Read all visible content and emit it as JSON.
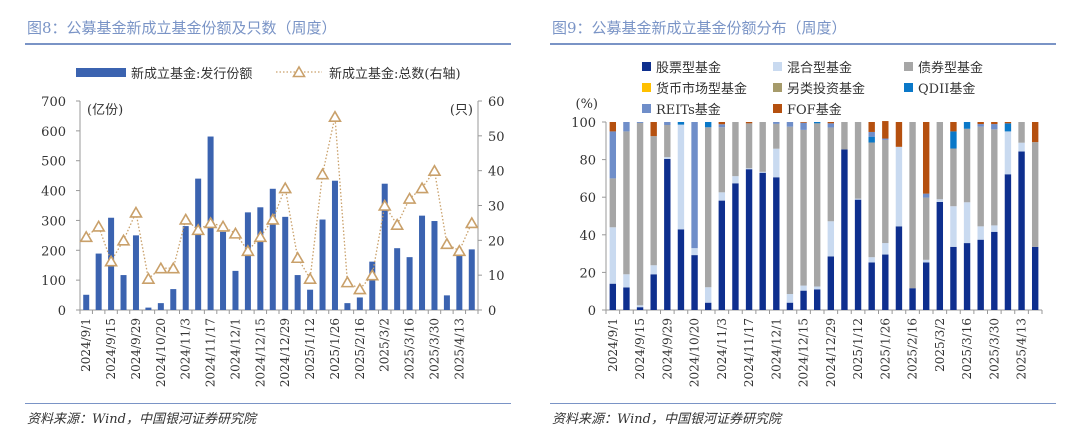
{
  "left": {
    "title": "图8：公募基金新成立基金份额及只数（周度）",
    "source": "资料来源：Wind，中国银河证券研究院"
  },
  "right": {
    "title": "图9：公募基金新成立基金份额分布（周度）",
    "source": "资料来源：Wind，中国银河证券研究院"
  },
  "chart_data": [
    {
      "type": "bar",
      "left_unit": "(亿份)",
      "right_unit": "(只)",
      "ylim": [
        0,
        700
      ],
      "y_ticks": [
        0,
        100,
        200,
        300,
        400,
        500,
        600,
        700
      ],
      "y2lim": [
        0,
        60
      ],
      "y2_ticks": [
        0,
        10,
        20,
        30,
        40,
        50,
        60
      ],
      "x_tick_labels": [
        "2024/9/1",
        "2024/9/15",
        "2024/9/29",
        "2024/10/20",
        "2024/11/3",
        "2024/11/17",
        "2024/12/1",
        "2024/12/15",
        "2024/12/29",
        "2025/1/12",
        "2025/1/26",
        "2025/2/16",
        "2025/3/2",
        "2025/3/16",
        "2025/3/30",
        "2025/4/13"
      ],
      "legend_placement": "top",
      "series": [
        {
          "name": "新成立基金:发行份额",
          "type": "bar",
          "axis": "left",
          "color": "#3b63b0",
          "values": [
            51,
            189,
            309,
            117,
            250,
            8,
            23,
            70,
            281,
            440,
            581,
            262,
            131,
            327,
            344,
            406,
            312,
            117,
            68,
            303,
            433,
            23,
            42,
            162,
            423,
            207,
            177,
            316,
            298,
            49,
            181,
            203
          ]
        },
        {
          "name": "新成立基金:总数(右轴)",
          "type": "line",
          "axis": "right",
          "color": "#c9a06a",
          "marker": "triangle",
          "values": [
            21,
            24,
            14,
            20,
            28,
            9,
            12,
            12,
            26,
            23,
            25,
            24,
            22,
            17,
            21,
            26,
            35,
            15,
            9,
            39,
            55.5,
            8,
            6,
            10,
            30,
            24.5,
            32,
            35,
            40,
            19,
            17,
            25
          ]
        }
      ]
    },
    {
      "type": "bar",
      "stacked": true,
      "y_unit": "(%)",
      "ylim": [
        0,
        100
      ],
      "y_ticks": [
        0,
        20,
        40,
        60,
        80,
        100
      ],
      "x_tick_labels": [
        "2024/9/1",
        "2024/9/15",
        "2024/9/29",
        "2024/10/20",
        "2024/11/3",
        "2024/11/17",
        "2024/12/1",
        "2024/12/15",
        "2024/12/29",
        "2025/1/12",
        "2025/1/26",
        "2025/2/16",
        "2025/3/2",
        "2025/3/16",
        "2025/3/30",
        "2025/4/13"
      ],
      "legend_placement": "top",
      "series": [
        {
          "name": "股票型基金",
          "color": "#0e2f8e",
          "values": [
            14,
            12,
            1.5,
            19,
            80.4,
            42.9,
            29.2,
            3.9,
            58.2,
            67.4,
            74.9,
            73,
            70.6,
            3.9,
            10.3,
            11,
            28.5,
            85.4,
            58.7,
            25.3,
            29.5,
            44.5,
            11.6,
            25.3,
            57.5,
            33.6,
            35.6,
            37.4,
            41.6,
            72.2,
            84.3,
            33.6
          ]
        },
        {
          "name": "混合型基金",
          "color": "#c9daf0",
          "values": [
            30,
            7,
            1,
            4.8,
            0.9,
            55.7,
            3.7,
            8.2,
            4.4,
            3.8,
            0.5,
            0.5,
            15.2,
            4.6,
            2.7,
            1.5,
            18.7,
            0,
            0.5,
            2.8,
            6.1,
            42.3,
            0,
            1.4,
            1.4,
            21.6,
            21.7,
            7.1,
            3.4,
            22.8,
            4.7,
            0
          ]
        },
        {
          "name": "债券型基金",
          "color": "#a6a6a6",
          "values": [
            26,
            76,
            97,
            68.7,
            17.1,
            0,
            0,
            85.1,
            34.6,
            28.8,
            23.9,
            26.5,
            13.2,
            89,
            82.8,
            86.8,
            49.9,
            14.6,
            40.8,
            61,
            54.9,
            0,
            88.4,
            33.1,
            41.1,
            30.7,
            39.1,
            53,
            51.1,
            0,
            11,
            55.7
          ]
        },
        {
          "name": "货币市场型基金",
          "color": "#ffc000",
          "values": [
            0,
            0,
            0,
            0,
            0,
            0,
            0,
            0,
            0,
            0,
            0,
            0,
            0,
            0,
            0,
            0,
            0,
            0,
            0,
            0,
            0,
            0,
            0,
            0,
            0,
            0,
            0,
            0,
            0,
            0,
            0,
            0
          ]
        },
        {
          "name": "另类投资基金",
          "color": "#a69b6b",
          "values": [
            0,
            0,
            0,
            0,
            0,
            0,
            0,
            0,
            0,
            0,
            0,
            0,
            0,
            0,
            0,
            0,
            0,
            0,
            0,
            0,
            0,
            0,
            0,
            0,
            0,
            0,
            0,
            0,
            0,
            0,
            0,
            0
          ]
        },
        {
          "name": "QDII基金",
          "color": "#0a78c8",
          "values": [
            0,
            0,
            0,
            0,
            0,
            1.4,
            0,
            2.8,
            0,
            0,
            0,
            0,
            0,
            0,
            0,
            0.7,
            0,
            0,
            0,
            3.1,
            0,
            0,
            0,
            0,
            0,
            9.1,
            3.6,
            0,
            0,
            4.3,
            0,
            0
          ]
        },
        {
          "name": "REITs基金",
          "color": "#6f8ec9",
          "values": [
            25,
            5,
            0.5,
            0,
            1.6,
            0,
            67.1,
            0,
            1.6,
            0,
            0,
            0,
            1,
            2.5,
            3.8,
            0,
            2.2,
            0,
            0,
            2.5,
            0.7,
            0,
            0,
            2.1,
            0,
            0,
            0,
            1.4,
            2.8,
            0,
            0,
            0
          ]
        },
        {
          "name": "FOF基金",
          "color": "#b5500f",
          "values": [
            5,
            0,
            0,
            7.5,
            0,
            0,
            0,
            0,
            1.2,
            0,
            0.7,
            0,
            0,
            0,
            0.4,
            0,
            0.7,
            0,
            0,
            5.3,
            9.3,
            13.2,
            0,
            38.1,
            0,
            5,
            0,
            1.1,
            1.1,
            0.7,
            0,
            10.7
          ]
        }
      ]
    }
  ]
}
